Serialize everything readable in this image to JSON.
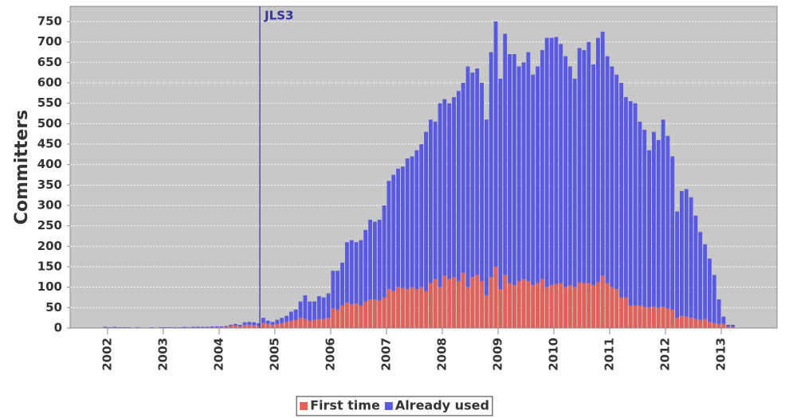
{
  "chart_data": {
    "type": "stacked_bar",
    "y_label": "Committers",
    "x": [
      2001.917,
      2002,
      2002.083,
      2002.167,
      2002.25,
      2002.333,
      2002.417,
      2002.5,
      2002.583,
      2002.667,
      2002.75,
      2002.833,
      2002.917,
      2003,
      2003.083,
      2003.167,
      2003.25,
      2003.333,
      2003.417,
      2003.5,
      2003.583,
      2003.667,
      2003.75,
      2003.833,
      2003.917,
      2004,
      2004.083,
      2004.167,
      2004.25,
      2004.333,
      2004.417,
      2004.5,
      2004.583,
      2004.667,
      2004.75,
      2004.833,
      2004.917,
      2005,
      2005.083,
      2005.167,
      2005.25,
      2005.333,
      2005.417,
      2005.5,
      2005.583,
      2005.667,
      2005.75,
      2005.833,
      2005.917,
      2006,
      2006.083,
      2006.167,
      2006.25,
      2006.333,
      2006.417,
      2006.5,
      2006.583,
      2006.667,
      2006.75,
      2006.833,
      2006.917,
      2007,
      2007.083,
      2007.167,
      2007.25,
      2007.333,
      2007.417,
      2007.5,
      2007.583,
      2007.667,
      2007.75,
      2007.833,
      2007.917,
      2008,
      2008.083,
      2008.167,
      2008.25,
      2008.333,
      2008.417,
      2008.5,
      2008.583,
      2008.667,
      2008.75,
      2008.833,
      2008.917,
      2009,
      2009.083,
      2009.167,
      2009.25,
      2009.333,
      2009.417,
      2009.5,
      2009.583,
      2009.667,
      2009.75,
      2009.833,
      2009.917,
      2010,
      2010.083,
      2010.167,
      2010.25,
      2010.333,
      2010.417,
      2010.5,
      2010.583,
      2010.667,
      2010.75,
      2010.833,
      2010.917,
      2011,
      2011.083,
      2011.167,
      2011.25,
      2011.333,
      2011.417,
      2011.5,
      2011.583,
      2011.667,
      2011.75,
      2011.833,
      2011.917,
      2012,
      2012.083,
      2012.167,
      2012.25,
      2012.333,
      2012.417,
      2012.5,
      2012.583,
      2012.667,
      2012.75,
      2012.833,
      2012.917,
      2013,
      2013.083,
      2013.167
    ],
    "series": [
      {
        "name": "First time",
        "color": "#e0605a",
        "values": [
          1,
          1,
          1,
          1,
          1,
          1,
          0,
          1,
          0,
          0,
          1,
          0,
          1,
          1,
          1,
          1,
          1,
          1,
          1,
          1,
          1,
          1,
          1,
          2,
          2,
          2,
          3,
          5,
          6,
          4,
          8,
          8,
          7,
          6,
          12,
          10,
          8,
          10,
          12,
          15,
          18,
          20,
          25,
          22,
          18,
          20,
          22,
          22,
          25,
          48,
          45,
          55,
          62,
          58,
          60,
          55,
          65,
          70,
          70,
          68,
          75,
          95,
          90,
          100,
          98,
          95,
          100,
          95,
          100,
          90,
          110,
          120,
          100,
          128,
          120,
          125,
          115,
          135,
          100,
          125,
          130,
          115,
          80,
          125,
          150,
          95,
          130,
          110,
          105,
          115,
          120,
          115,
          105,
          110,
          120,
          100,
          105,
          108,
          110,
          100,
          105,
          100,
          112,
          110,
          110,
          105,
          112,
          128,
          110,
          100,
          95,
          75,
          75,
          55,
          55,
          55,
          52,
          50,
          52,
          50,
          52,
          48,
          45,
          25,
          30,
          28,
          25,
          22,
          20,
          22,
          15,
          12,
          10,
          10,
          3,
          3
        ]
      },
      {
        "name": "Already used",
        "color": "#5a5ae0",
        "values": [
          2,
          1,
          2,
          1,
          1,
          1,
          1,
          1,
          1,
          1,
          1,
          1,
          1,
          1,
          1,
          1,
          1,
          2,
          1,
          2,
          2,
          2,
          2,
          2,
          2,
          2,
          2,
          3,
          4,
          4,
          6,
          7,
          7,
          6,
          13,
          8,
          7,
          10,
          13,
          15,
          22,
          25,
          40,
          58,
          47,
          45,
          56,
          53,
          60,
          92,
          95,
          105,
          148,
          157,
          150,
          160,
          175,
          195,
          190,
          197,
          225,
          265,
          285,
          290,
          297,
          320,
          320,
          340,
          350,
          390,
          400,
          385,
          450,
          432,
          430,
          440,
          465,
          465,
          540,
          500,
          505,
          485,
          430,
          550,
          600,
          515,
          590,
          560,
          565,
          525,
          530,
          560,
          515,
          530,
          560,
          610,
          605,
          604,
          585,
          565,
          535,
          510,
          573,
          570,
          590,
          540,
          598,
          597,
          555,
          540,
          525,
          525,
          490,
          500,
          495,
          450,
          433,
          385,
          428,
          410,
          458,
          422,
          375,
          260,
          305,
          312,
          295,
          253,
          215,
          183,
          155,
          118,
          60,
          18,
          5,
          5
        ]
      }
    ],
    "annotations": [
      {
        "text": "JLS3",
        "x": 2004.73,
        "color": "#333399"
      }
    ],
    "xlim": [
      2001.33,
      2014
    ],
    "xticks": [
      2002,
      2003,
      2004,
      2005,
      2006,
      2007,
      2008,
      2009,
      2010,
      2011,
      2012,
      2013
    ],
    "ylim": [
      0,
      787
    ],
    "yticks": [
      0,
      50,
      100,
      150,
      200,
      250,
      300,
      350,
      400,
      450,
      500,
      550,
      600,
      650,
      700,
      750
    ],
    "grid": true,
    "legend": "bottom"
  }
}
